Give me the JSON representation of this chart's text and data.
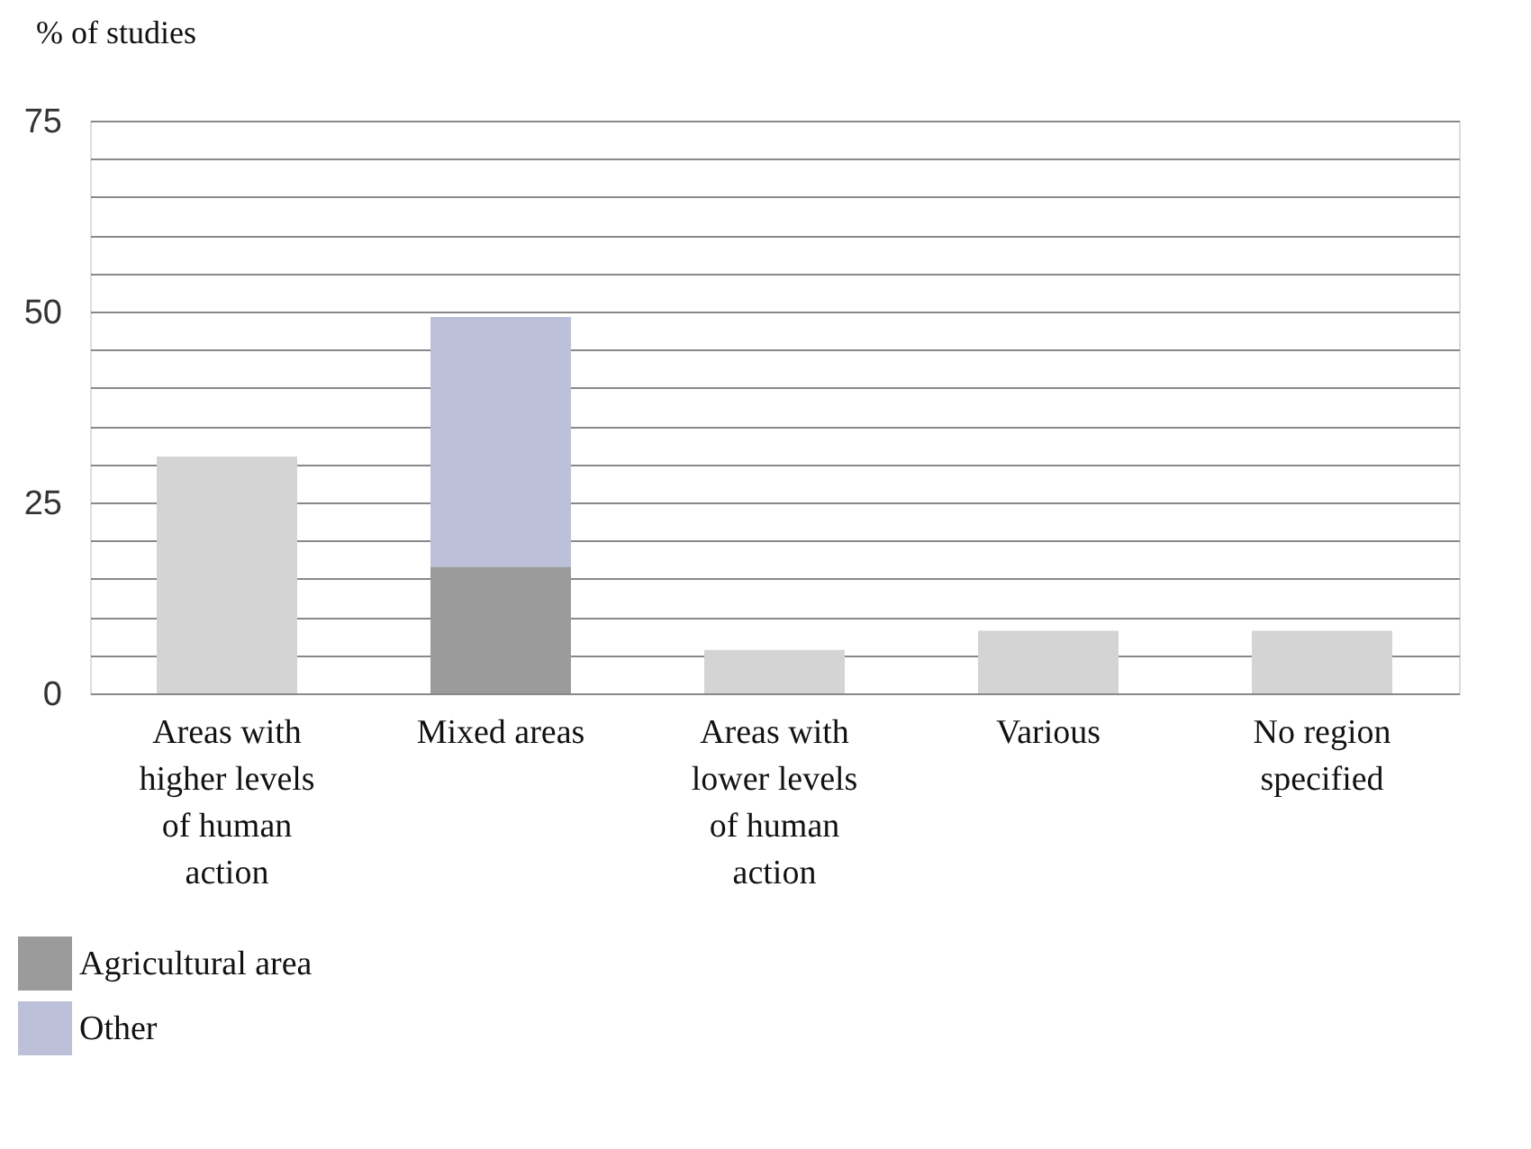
{
  "chart_data": {
    "type": "bar",
    "stacked": true,
    "ylabel": "% of studies",
    "categories": [
      "Areas with higher levels of human action",
      "Mixed areas",
      "Areas with lower levels of human action",
      "Various",
      "No region specified"
    ],
    "series": [
      {
        "color": "#d4d4d4",
        "values": [
          31,
          null,
          5.7,
          8.2,
          8.2
        ]
      },
      {
        "name": "Agricultural area",
        "color": "#9b9b9b",
        "values": [
          null,
          16.6,
          null,
          null,
          null
        ]
      },
      {
        "name": "Other",
        "color": "#bcc0d8",
        "values": [
          null,
          32.7,
          null,
          null,
          null
        ]
      }
    ],
    "ylim": [
      0,
      75
    ],
    "yticks": [
      0,
      {
        "value": 5,
        "label": null
      },
      {
        "value": 10,
        "label": null
      },
      {
        "value": 15,
        "label": null
      },
      {
        "value": 20,
        "label": null
      },
      25,
      {
        "value": 30,
        "label": null
      },
      {
        "value": 35,
        "label": null
      },
      {
        "value": 40,
        "label": null
      },
      {
        "value": 45,
        "label": null
      },
      50,
      {
        "value": 55,
        "label": null
      },
      {
        "value": 60,
        "label": null
      },
      {
        "value": 65,
        "label": null
      },
      {
        "value": 70,
        "label": null
      },
      75
    ],
    "grid": "y",
    "legend": "bottom left"
  }
}
